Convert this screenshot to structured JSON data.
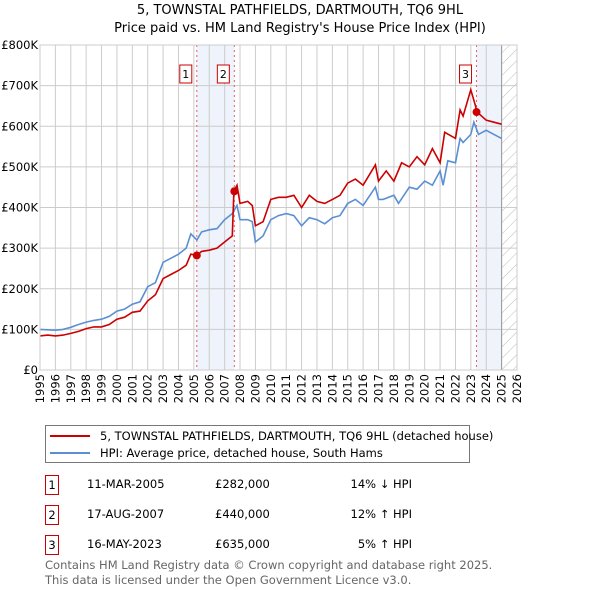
{
  "title": "5, TOWNSTAL PATHFIELDS, DARTMOUTH, TQ6 9HL",
  "subtitle": "Price paid vs. HM Land Registry's House Price Index (HPI)",
  "chart_data": {
    "type": "line",
    "title": "5, TOWNSTAL PATHFIELDS, DARTMOUTH, TQ6 9HL",
    "subtitle": "Price paid vs. HM Land Registry's House Price Index (HPI)",
    "xlim": [
      1995,
      2026
    ],
    "ylim": [
      0,
      800000
    ],
    "x_ticks": [
      "1995",
      "1996",
      "1997",
      "1998",
      "1999",
      "2000",
      "2001",
      "2002",
      "2003",
      "2004",
      "2005",
      "2006",
      "2007",
      "2008",
      "2009",
      "2010",
      "2011",
      "2012",
      "2013",
      "2014",
      "2015",
      "2016",
      "2017",
      "2018",
      "2019",
      "2020",
      "2021",
      "2022",
      "2023",
      "2024",
      "2025",
      "2026"
    ],
    "y_ticks": [
      {
        "v": 0,
        "label": "£0"
      },
      {
        "v": 100000,
        "label": "£100K"
      },
      {
        "v": 200000,
        "label": "£200K"
      },
      {
        "v": 300000,
        "label": "£300K"
      },
      {
        "v": 400000,
        "label": "£400K"
      },
      {
        "v": 500000,
        "label": "£500K"
      },
      {
        "v": 600000,
        "label": "£600K"
      },
      {
        "v": 700000,
        "label": "£700K"
      },
      {
        "v": 800000,
        "label": "£800K"
      }
    ],
    "grid": true,
    "legend_position": "bottom",
    "series": [
      {
        "name": "5, TOWNSTAL PATHFIELDS, DARTMOUTH, TQ6 9HL (detached house)",
        "color": "#cc0000",
        "x": [
          1995,
          1995.5,
          1996,
          1996.5,
          1997,
          1997.5,
          1998,
          1998.5,
          1999,
          1999.5,
          2000,
          2000.5,
          2001,
          2001.5,
          2002,
          2002.5,
          2003,
          2003.5,
          2004,
          2004.5,
          2004.8,
          2005.2,
          2005.5,
          2006,
          2006.5,
          2007,
          2007.5,
          2007.6,
          2007.8,
          2008,
          2008.5,
          2008.8,
          2009,
          2009.5,
          2010,
          2010.5,
          2011,
          2011.5,
          2012,
          2012.5,
          2013,
          2013.5,
          2014,
          2014.5,
          2015,
          2015.5,
          2016,
          2016.8,
          2017,
          2017.5,
          2018,
          2018.5,
          2019,
          2019.5,
          2020,
          2020.5,
          2021,
          2021.3,
          2022,
          2022.3,
          2022.5,
          2023,
          2023.3,
          2023.4,
          2024,
          2024.5,
          2025
        ],
        "y": [
          84000,
          86000,
          84000,
          86000,
          90000,
          95000,
          102000,
          106000,
          106000,
          112000,
          125000,
          130000,
          142000,
          145000,
          170000,
          185000,
          225000,
          235000,
          245000,
          258000,
          285000,
          282000,
          292000,
          295000,
          300000,
          315000,
          330000,
          440000,
          455000,
          410000,
          415000,
          405000,
          355000,
          365000,
          420000,
          425000,
          425000,
          430000,
          400000,
          430000,
          415000,
          410000,
          420000,
          430000,
          460000,
          470000,
          455000,
          505000,
          465000,
          490000,
          465000,
          510000,
          500000,
          525000,
          505000,
          545000,
          510000,
          585000,
          570000,
          640000,
          625000,
          690000,
          650000,
          635000,
          615000,
          610000,
          605000
        ]
      },
      {
        "name": "HPI: Average price, detached house, South Hams",
        "color": "#5b8fd4",
        "x": [
          1995,
          1995.5,
          1996,
          1996.5,
          1997,
          1997.5,
          1998,
          1998.5,
          1999,
          1999.5,
          2000,
          2000.5,
          2001,
          2001.5,
          2002,
          2002.5,
          2003,
          2003.5,
          2004,
          2004.5,
          2004.8,
          2005.2,
          2005.5,
          2006,
          2006.5,
          2007,
          2007.5,
          2007.8,
          2008,
          2008.5,
          2008.8,
          2009,
          2009.5,
          2010,
          2010.5,
          2011,
          2011.5,
          2012,
          2012.5,
          2013,
          2013.5,
          2014,
          2014.5,
          2015,
          2015.5,
          2016,
          2016.8,
          2017,
          2017.3,
          2018,
          2018.3,
          2019,
          2019.5,
          2020,
          2020.5,
          2021,
          2021.2,
          2021.5,
          2022,
          2022.3,
          2022.5,
          2023,
          2023.2,
          2023.5,
          2024,
          2024.5,
          2025
        ],
        "y": [
          100000,
          99000,
          98000,
          100000,
          105000,
          112000,
          118000,
          122000,
          125000,
          132000,
          145000,
          150000,
          162000,
          168000,
          205000,
          215000,
          265000,
          275000,
          285000,
          300000,
          335000,
          320000,
          340000,
          345000,
          348000,
          370000,
          385000,
          405000,
          370000,
          370000,
          365000,
          315000,
          330000,
          370000,
          380000,
          385000,
          380000,
          355000,
          375000,
          370000,
          360000,
          375000,
          380000,
          410000,
          420000,
          405000,
          450000,
          420000,
          420000,
          430000,
          410000,
          450000,
          445000,
          465000,
          455000,
          490000,
          455000,
          515000,
          510000,
          570000,
          560000,
          580000,
          610000,
          580000,
          590000,
          580000,
          570000
        ]
      }
    ],
    "sales": [
      {
        "label": "1",
        "x": 2005.19,
        "y": 282000
      },
      {
        "label": "2",
        "x": 2007.63,
        "y": 440000
      },
      {
        "label": "3",
        "x": 2023.37,
        "y": 635000
      }
    ],
    "shaded_ranges": [
      [
        2005.19,
        2007.63
      ],
      [
        2023.37,
        2025.0
      ]
    ],
    "hatched_from": 2025.0
  },
  "legend": {
    "property": "5, TOWNSTAL PATHFIELDS, DARTMOUTH, TQ6 9HL (detached house)",
    "hpi": "HPI: Average price, detached house, South Hams"
  },
  "transactions": [
    {
      "num": "1",
      "date": "11-MAR-2005",
      "price": "£282,000",
      "hpi": "14% ↓ HPI"
    },
    {
      "num": "2",
      "date": "17-AUG-2007",
      "price": "£440,000",
      "hpi": "12% ↑ HPI"
    },
    {
      "num": "3",
      "date": "16-MAY-2023",
      "price": "£635,000",
      "hpi": "5% ↑ HPI"
    }
  ],
  "footer": {
    "line1": "Contains HM Land Registry data © Crown copyright and database right 2025.",
    "line2": "This data is licensed under the Open Government Licence v3.0."
  }
}
